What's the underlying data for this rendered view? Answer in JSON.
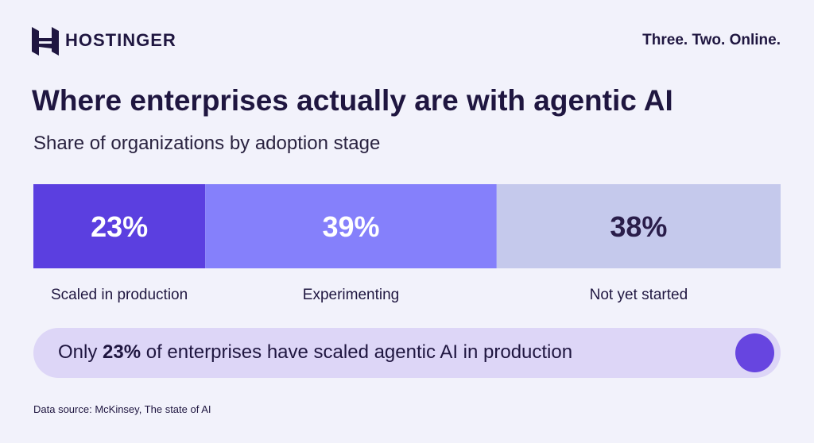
{
  "brand": "HOSTINGER",
  "tagline": "Three. Two. Online.",
  "chart_data": {
    "type": "stacked-bar",
    "title": "Where enterprises actually are with agentic AI",
    "subtitle": "Share of organizations by adoption stage",
    "series": [
      {
        "name": "Scaled in production",
        "color": "#5b3fe0",
        "label_color": "#ffffff",
        "values": [
          23
        ],
        "value_labels": [
          "23%"
        ]
      },
      {
        "name": "Experimenting",
        "color": "#8580fb",
        "label_color": "#ffffff",
        "values": [
          39
        ],
        "value_labels": [
          "39%"
        ]
      },
      {
        "name": "Not yet started",
        "color": "#c5c9ec",
        "label_color": "#2a1d4a",
        "values": [
          38
        ],
        "value_labels": [
          "38%"
        ]
      }
    ]
  },
  "callout": {
    "before": "Only",
    "highlight": "23%",
    "after": "of enterprises have scaled agentic AI in production"
  },
  "source": "Data source: McKinsey, The state of AI"
}
